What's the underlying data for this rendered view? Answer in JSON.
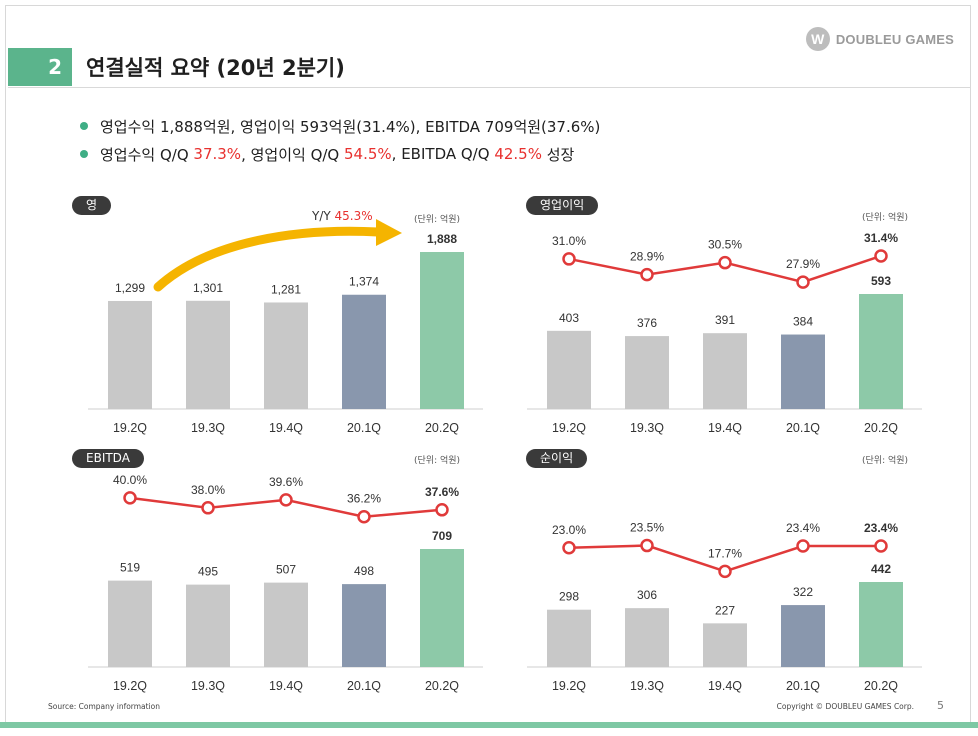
{
  "logo": {
    "mark": "W",
    "text": "DOUBLEU GAMES"
  },
  "title": {
    "number": "2",
    "text": "연결실적 요약 (20년 2분기)"
  },
  "bullets": [
    {
      "parts": [
        {
          "t": "영업수익 1,888억원, 영업이익 593억원(31.4%), EBITDA 709억원(37.6%)",
          "red": false
        }
      ]
    },
    {
      "parts": [
        {
          "t": "영업수익 Q/Q ",
          "red": false
        },
        {
          "t": "37.3%",
          "red": true
        },
        {
          "t": ", 영업이익 Q/Q ",
          "red": false
        },
        {
          "t": "54.5%",
          "red": true
        },
        {
          "t": ", EBITDA Q/Q ",
          "red": false
        },
        {
          "t": "42.5%",
          "red": true
        },
        {
          "t": " 성장",
          "red": false
        }
      ]
    }
  ],
  "colors": {
    "gray": "#c8c8c8",
    "navy": "#8997ad",
    "green": "#8dc9a8",
    "line": "#e03a3a",
    "accent": "#5bb48c",
    "arrow": "#f5b400"
  },
  "footer": {
    "source": "Source: Company information",
    "copyright": "Copyright © DOUBLEU GAMES Corp.",
    "page": "5"
  },
  "yoy": {
    "label": "Y/Y ",
    "value": "45.3%"
  },
  "chart_data": [
    {
      "type": "bar",
      "title": "영업수익",
      "unit": "(단위: 억원)",
      "categories": [
        "19.2Q",
        "19.3Q",
        "19.4Q",
        "20.1Q",
        "20.2Q"
      ],
      "values": [
        1299,
        1301,
        1281,
        1374,
        1888
      ],
      "value_labels": [
        "1,299",
        "1,301",
        "1,281",
        "1,374",
        "1,888"
      ],
      "bar_colors": [
        "gray",
        "gray",
        "gray",
        "navy",
        "green"
      ],
      "ylim": [
        0,
        1888
      ]
    },
    {
      "type": "bar",
      "title": "영업이익",
      "unit": "(단위: 억원)",
      "categories": [
        "19.2Q",
        "19.3Q",
        "19.4Q",
        "20.1Q",
        "20.2Q"
      ],
      "values": [
        403,
        376,
        391,
        384,
        593
      ],
      "value_labels": [
        "403",
        "376",
        "391",
        "384",
        "593"
      ],
      "bar_colors": [
        "gray",
        "gray",
        "gray",
        "navy",
        "green"
      ],
      "ylim": [
        0,
        593
      ],
      "line": {
        "values": [
          31.0,
          28.9,
          30.5,
          27.9,
          31.4
        ],
        "labels": [
          "31.0%",
          "28.9%",
          "30.5%",
          "27.9%",
          "31.4%"
        ],
        "ylim": [
          25.5,
          33.0
        ]
      }
    },
    {
      "type": "bar",
      "title": "EBITDA",
      "unit": "(단위: 억원)",
      "categories": [
        "19.2Q",
        "19.3Q",
        "19.4Q",
        "20.1Q",
        "20.2Q"
      ],
      "values": [
        519,
        495,
        507,
        498,
        709
      ],
      "value_labels": [
        "519",
        "495",
        "507",
        "498",
        "709"
      ],
      "bar_colors": [
        "gray",
        "gray",
        "gray",
        "navy",
        "green"
      ],
      "ylim": [
        0,
        709
      ],
      "line": {
        "values": [
          40.0,
          38.0,
          39.6,
          36.2,
          37.6
        ],
        "labels": [
          "40.0%",
          "38.0%",
          "39.6%",
          "36.2%",
          "37.6%"
        ],
        "ylim": [
          31.5,
          42.0
        ]
      }
    },
    {
      "type": "bar",
      "title": "순이익",
      "unit": "(단위: 억원)",
      "categories": [
        "19.2Q",
        "19.3Q",
        "19.4Q",
        "20.1Q",
        "20.2Q"
      ],
      "values": [
        298,
        306,
        227,
        322,
        442
      ],
      "value_labels": [
        "298",
        "306",
        "227",
        "322",
        "442"
      ],
      "bar_colors": [
        "gray",
        "gray",
        "gray",
        "navy",
        "green"
      ],
      "ylim": [
        0,
        442
      ],
      "line": {
        "values": [
          23.0,
          23.5,
          17.7,
          23.4,
          23.4
        ],
        "labels": [
          "23.0%",
          "23.5%",
          "17.7%",
          "23.4%",
          "23.4%"
        ],
        "ylim": [
          13.5,
          27.0
        ]
      }
    }
  ]
}
